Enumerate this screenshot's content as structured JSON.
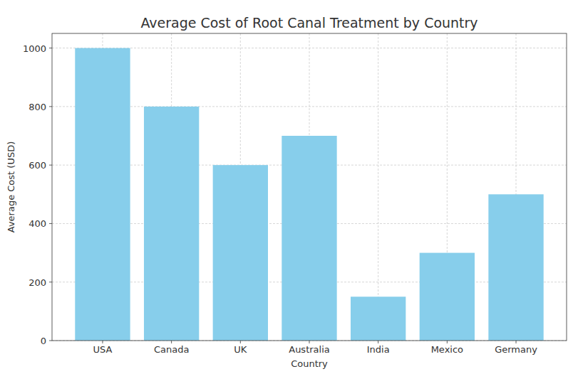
{
  "chart_data": {
    "type": "bar",
    "title": "Average Cost of Root Canal Treatment by Country",
    "x_label": "Country",
    "y_label": "Average Cost (USD)",
    "categories": [
      "USA",
      "Canada",
      "UK",
      "Australia",
      "India",
      "Mexico",
      "Germany"
    ],
    "values": [
      1000,
      800,
      600,
      700,
      150,
      300,
      500
    ],
    "color": "#87ceeb",
    "ylim": [
      0,
      1050
    ],
    "yticks": [
      0,
      200,
      400,
      600,
      800,
      1000
    ],
    "grid": true
  }
}
